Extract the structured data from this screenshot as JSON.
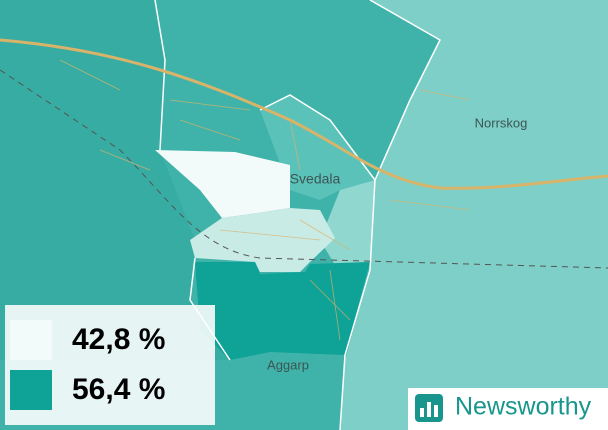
{
  "map": {
    "places": [
      {
        "label": "Svedala"
      },
      {
        "label": "Norrskog"
      },
      {
        "label": "Aggarp"
      }
    ],
    "legend": [
      {
        "label": "42,8 %",
        "color": "#f3fbfa"
      },
      {
        "label": "56,4 %",
        "color": "#0fa297"
      }
    ],
    "brand": "Newsworthy"
  }
}
